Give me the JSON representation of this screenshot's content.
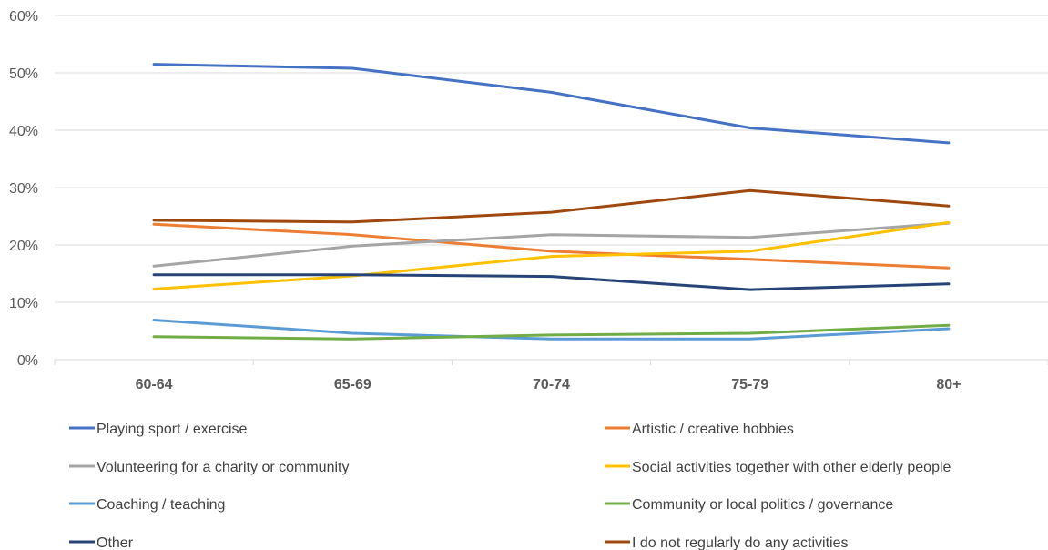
{
  "chart_data": {
    "type": "line",
    "title": "",
    "xlabel": "",
    "ylabel": "",
    "categories": [
      "60-64",
      "65-69",
      "70-74",
      "75-79",
      "80+"
    ],
    "ylim": [
      0,
      60
    ],
    "y_ticks": [
      {
        "value": 0,
        "label": "0%"
      },
      {
        "value": 10,
        "label": "10%"
      },
      {
        "value": 20,
        "label": "20%"
      },
      {
        "value": 30,
        "label": "30%"
      },
      {
        "value": 40,
        "label": "40%"
      },
      {
        "value": 50,
        "label": "50%"
      },
      {
        "value": 60,
        "label": "60%"
      }
    ],
    "grid": true,
    "legend_position": "bottom",
    "series": [
      {
        "name": "Playing sport / exercise",
        "color": "#4472c4",
        "values": [
          51.5,
          50.8,
          46.6,
          40.4,
          37.8
        ]
      },
      {
        "name": "Artistic / creative hobbies",
        "color": "#ed7d31",
        "values": [
          23.6,
          21.8,
          18.9,
          17.5,
          16.0
        ]
      },
      {
        "name": "Volunteering for a charity or community",
        "color": "#a5a5a5",
        "values": [
          16.3,
          19.8,
          21.8,
          21.3,
          23.8
        ]
      },
      {
        "name": "Social activities together with other elderly people",
        "color": "#ffc000",
        "values": [
          12.3,
          14.6,
          18.0,
          18.9,
          23.9
        ]
      },
      {
        "name": "Coaching / teaching",
        "color": "#5b9bd5",
        "values": [
          6.9,
          4.6,
          3.6,
          3.6,
          5.4
        ]
      },
      {
        "name": "Community or local politics / governance",
        "color": "#70ad47",
        "values": [
          4.0,
          3.6,
          4.3,
          4.6,
          6.0
        ]
      },
      {
        "name": "Other",
        "color": "#264478",
        "values": [
          14.8,
          14.8,
          14.5,
          12.2,
          13.2
        ]
      },
      {
        "name": "I do not regularly do any activities",
        "color": "#9e480e",
        "values": [
          24.3,
          24.0,
          25.7,
          29.5,
          26.8
        ]
      }
    ]
  }
}
